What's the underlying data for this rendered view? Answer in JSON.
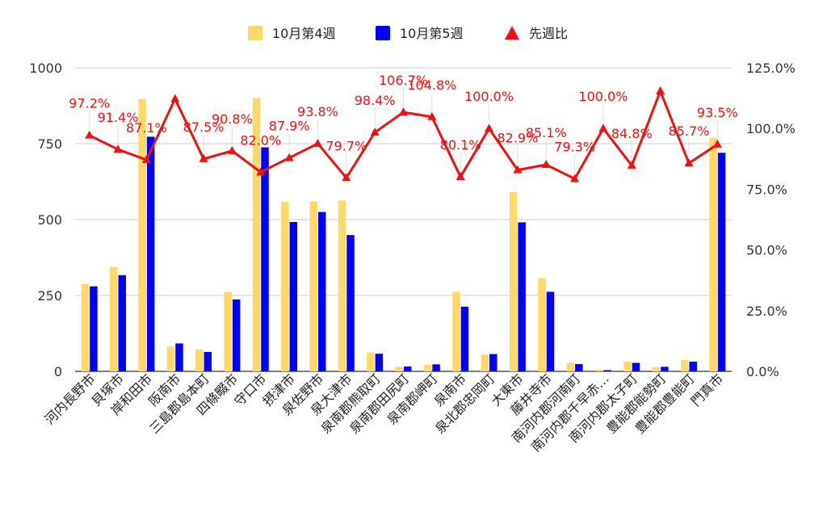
{
  "chart_data": {
    "type": "bar",
    "legend": [
      {
        "name": "10月第4週",
        "color": "#ffd966",
        "shape": "square"
      },
      {
        "name": "10月第5週",
        "color": "#0000ff",
        "shape": "square"
      },
      {
        "name": "先週比",
        "color": "#ee1111",
        "shape": "triangle"
      }
    ],
    "legend_position": "top",
    "grid": true,
    "categories": [
      "河内長野市",
      "貝塚市",
      "岸和田市",
      "阪南市",
      "三島郡島本町",
      "四條畷市",
      "守口市",
      "摂津市",
      "泉佐野市",
      "泉大津市",
      "泉南郡熊取町",
      "泉南郡田尻町",
      "泉南郡岬町",
      "泉南市",
      "泉北郡忠岡町",
      "大東市",
      "藤井寺市",
      "南河内郡河南町",
      "南河内郡千早赤…",
      "南河内郡太子町",
      "豊能郡能勢町",
      "豊能郡豊能町",
      "門真市"
    ],
    "series": [
      {
        "name": "10月第4週",
        "type": "bar",
        "color": "#ffd966",
        "values": [
          288,
          344,
          897,
          82,
          72,
          261,
          900,
          559,
          560,
          563,
          62,
          15,
          22,
          262,
          55,
          591,
          307,
          28,
          5,
          32,
          14,
          37,
          770
        ]
      },
      {
        "name": "10月第5週",
        "type": "bar",
        "color": "#0000ff",
        "values": [
          280,
          317,
          773,
          92,
          64,
          237,
          738,
          492,
          525,
          449,
          58,
          16,
          23,
          213,
          57,
          491,
          262,
          24,
          4,
          28,
          15,
          32,
          720
        ]
      },
      {
        "name": "先週比",
        "type": "line",
        "axis": "right",
        "color": "#ee1111",
        "values": [
          97.2,
          91.4,
          87.1,
          112.2,
          87.5,
          90.8,
          82.0,
          87.9,
          93.8,
          79.7,
          98.4,
          106.7,
          104.8,
          80.1,
          100.0,
          82.9,
          85.1,
          79.3,
          100.0,
          84.8,
          115.4,
          85.7,
          93.5
        ],
        "labels": [
          "97.2%",
          "91.4%",
          "87.1%",
          "",
          "87.5%",
          "90.8%",
          "82.0%",
          "87.9%",
          "93.8%",
          "79.7%",
          "98.4%",
          "106.7%",
          "104.8%",
          "80.1%",
          "100.0%",
          "82.9%",
          "85.1%",
          "79.3%",
          "100.0%",
          "84.8%",
          "",
          "85.7%",
          "93.5%"
        ]
      }
    ],
    "y_left": {
      "min": 0,
      "max": 1000,
      "ticks": [
        0,
        250,
        500,
        750,
        1000
      ],
      "tick_labels": [
        "0",
        "250",
        "500",
        "750",
        "1000"
      ]
    },
    "y_right": {
      "min": 0,
      "max": 125,
      "ticks": [
        0,
        25,
        50,
        75,
        100,
        125
      ],
      "tick_labels": [
        "0.0%",
        "25.0%",
        "50.0%",
        "75.0%",
        "100.0%",
        "125.0%"
      ]
    }
  }
}
